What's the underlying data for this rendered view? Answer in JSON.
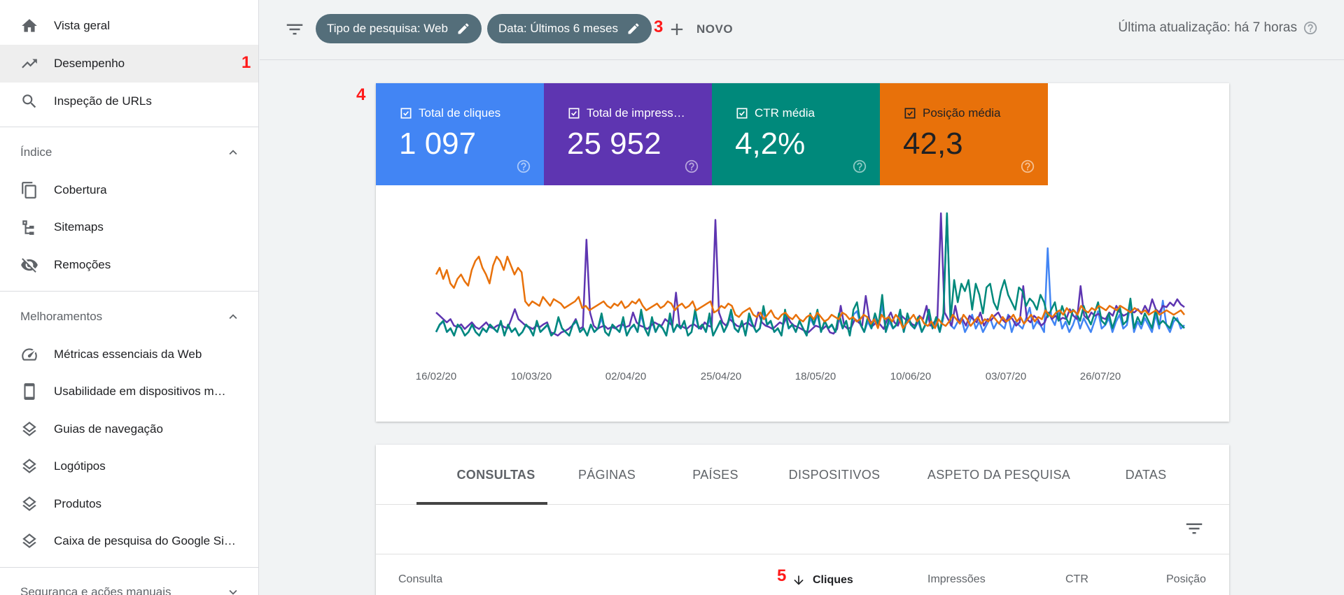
{
  "sidebar": {
    "items": [
      {
        "label": "Vista geral",
        "icon": "home-icon"
      },
      {
        "label": "Desempenho",
        "icon": "trending-up-icon",
        "active": true
      },
      {
        "label": "Inspeção de URLs",
        "icon": "search-icon"
      }
    ],
    "sections": [
      {
        "title": "Índice",
        "expanded": true,
        "items": [
          {
            "label": "Cobertura",
            "icon": "copy-icon"
          },
          {
            "label": "Sitemaps",
            "icon": "sitemap-icon"
          },
          {
            "label": "Remoções",
            "icon": "visibility-off-icon"
          }
        ]
      },
      {
        "title": "Melhoramentos",
        "expanded": true,
        "items": [
          {
            "label": "Métricas essenciais da Web",
            "icon": "speed-gauge-icon"
          },
          {
            "label": "Usabilidade em dispositivos m…",
            "icon": "smartphone-icon"
          },
          {
            "label": "Guias de navegação",
            "icon": "layers-icon"
          },
          {
            "label": "Logótipos",
            "icon": "layers-icon"
          },
          {
            "label": "Produtos",
            "icon": "layers-icon"
          },
          {
            "label": "Caixa de pesquisa do Google Si…",
            "icon": "layers-icon"
          }
        ]
      },
      {
        "title": "Segurança e ações manuais",
        "expanded": false,
        "items": []
      }
    ]
  },
  "annotations": {
    "n1": "1",
    "n2": "2",
    "n3": "3",
    "n4": "4",
    "n5": "5"
  },
  "topbar": {
    "chips": [
      "Tipo de pesquisa: Web",
      "Data: Últimos 6 meses"
    ],
    "new_label": "NOVO",
    "last_update": "Última atualização: há 7 horas"
  },
  "metrics": [
    {
      "label": "Total de cliques",
      "value": "1 097",
      "color": "#4285f4"
    },
    {
      "label": "Total de impress…",
      "value": "25 952",
      "color": "#5e35b1"
    },
    {
      "label": "CTR média",
      "value": "4,2%",
      "color": "#00897b"
    },
    {
      "label": "Posição média",
      "value": "42,3",
      "color": "#e8710a"
    }
  ],
  "chart_data": {
    "type": "line",
    "x_ticks": [
      "16/02/20",
      "10/03/20",
      "02/04/20",
      "25/04/20",
      "18/05/20",
      "10/06/20",
      "03/07/20",
      "26/07/20"
    ],
    "grid": false,
    "series": [
      {
        "name": "Total de cliques",
        "color": "#4285f4",
        "values": [
          4,
          6,
          7,
          4,
          5,
          3,
          6,
          5,
          3,
          4,
          6,
          4,
          3,
          5,
          4,
          6,
          5,
          4,
          7,
          3,
          6,
          4,
          5,
          3,
          4,
          6,
          5,
          3,
          7,
          4,
          5,
          6,
          3,
          4,
          8,
          5,
          4,
          3,
          6,
          7,
          4,
          5,
          3,
          6,
          4,
          5,
          8,
          4,
          3,
          6,
          5,
          4,
          7,
          3,
          5,
          6,
          4,
          9,
          5,
          3,
          7,
          4,
          6,
          5,
          3,
          8,
          4,
          6,
          5,
          7,
          3,
          4,
          9,
          5,
          6,
          4,
          8,
          3,
          5,
          7,
          4,
          6,
          9,
          5,
          4,
          7,
          3,
          8,
          6,
          4,
          5,
          10,
          6,
          7,
          4,
          5,
          3,
          9,
          5,
          6,
          4,
          7,
          5,
          3,
          8,
          6,
          9,
          4,
          7,
          5,
          6,
          4,
          8,
          5,
          7,
          3,
          9,
          10,
          6,
          4,
          7,
          5,
          8,
          6,
          12,
          4,
          7,
          5,
          6,
          9,
          4,
          8,
          6,
          5,
          7,
          4,
          6,
          9,
          5,
          7,
          4,
          8,
          38,
          6,
          5,
          7,
          8,
          4,
          6,
          9,
          5,
          7,
          4,
          6,
          8,
          5,
          7,
          6,
          5,
          9,
          4,
          7,
          6,
          5,
          8,
          11,
          5,
          7,
          6,
          4,
          28,
          8,
          6,
          10,
          5,
          7,
          4,
          6,
          9,
          5,
          8,
          6,
          4,
          7,
          10,
          5,
          6,
          8,
          4,
          7,
          9,
          5,
          6,
          12,
          4,
          7,
          5,
          8,
          6,
          4,
          9,
          5,
          13,
          6,
          4,
          7,
          8,
          5,
          6
        ]
      },
      {
        "name": "Total de impressões",
        "color": "#5e35b1",
        "values": [
          150,
          145,
          140,
          135,
          140,
          130,
          128,
          132,
          125,
          130,
          135,
          128,
          125,
          130,
          135,
          128,
          126,
          130,
          132,
          128,
          126,
          140,
          155,
          140,
          135,
          130,
          128,
          125,
          130,
          128,
          132,
          135,
          120,
          118,
          115,
          120,
          122,
          125,
          130,
          140,
          125,
          128,
          260,
          150,
          130,
          125,
          128,
          130,
          125,
          128,
          126,
          130,
          132,
          128,
          130,
          150,
          135,
          130,
          128,
          125,
          130,
          135,
          132,
          130,
          140,
          135,
          130,
          180,
          130,
          128,
          125,
          130,
          132,
          128,
          125,
          135,
          130,
          128,
          290,
          150,
          135,
          130,
          140,
          135,
          130,
          128,
          132,
          135,
          130,
          128,
          150,
          135,
          130,
          128,
          125,
          130,
          135,
          132,
          145,
          135,
          130,
          128,
          125,
          122,
          120,
          125,
          130,
          128,
          125,
          130,
          120,
          118,
          125,
          160,
          130,
          125,
          128,
          140,
          135,
          130,
          175,
          140,
          130,
          135,
          132,
          125,
          140,
          150,
          135,
          130,
          145,
          140,
          138,
          132,
          130,
          145,
          140,
          160,
          130,
          135,
          140,
          300,
          150,
          140,
          130,
          160,
          135,
          140,
          130,
          145,
          140,
          135,
          150,
          130,
          140,
          138,
          145,
          150,
          140,
          135,
          145,
          140,
          130,
          135,
          190,
          140,
          135,
          145,
          140,
          130,
          135,
          150,
          140,
          145,
          138,
          142,
          140,
          155,
          145,
          140,
          190,
          145,
          140,
          150,
          145,
          148,
          142,
          140,
          150,
          145,
          160,
          150,
          145,
          148,
          152,
          150,
          155,
          148,
          160,
          150,
          170,
          155,
          150,
          160,
          158,
          165,
          160,
          170,
          162,
          158
        ]
      },
      {
        "name": "CTR média",
        "color": "#00897b",
        "values": [
          4,
          6,
          7,
          4,
          5,
          3,
          6,
          5,
          3,
          4,
          6,
          4,
          3,
          5,
          4,
          6,
          5,
          4,
          7,
          3,
          6,
          4,
          5,
          3,
          4,
          6,
          5,
          3,
          7,
          4,
          5,
          6,
          3,
          4,
          8,
          5,
          4,
          3,
          6,
          7,
          4,
          5,
          3,
          6,
          4,
          5,
          9,
          4,
          3,
          6,
          5,
          4,
          8,
          3,
          5,
          6,
          4,
          10,
          5,
          3,
          8,
          4,
          6,
          5,
          3,
          9,
          4,
          6,
          5,
          7,
          3,
          4,
          10,
          5,
          6,
          4,
          9,
          3,
          5,
          7,
          4,
          6,
          10,
          5,
          4,
          7,
          3,
          9,
          6,
          4,
          5,
          11,
          6,
          7,
          4,
          5,
          3,
          10,
          5,
          6,
          4,
          7,
          5,
          3,
          9,
          6,
          10,
          4,
          7,
          5,
          6,
          4,
          9,
          5,
          7,
          3,
          10,
          12,
          6,
          4,
          8,
          5,
          9,
          6,
          14,
          4,
          8,
          5,
          6,
          10,
          4,
          9,
          6,
          5,
          8,
          4,
          6,
          10,
          5,
          8,
          4,
          9,
          36,
          7,
          18,
          12,
          17,
          15,
          18,
          10,
          17,
          14,
          9,
          16,
          17,
          12,
          10,
          15,
          18,
          14,
          12,
          10,
          16,
          15,
          11,
          13,
          12,
          10,
          14,
          12,
          8,
          10,
          12,
          7,
          11,
          8,
          6,
          10,
          9,
          7,
          11,
          8,
          6,
          9,
          12,
          7,
          6,
          9,
          5,
          8,
          11,
          6,
          7,
          13,
          5,
          8,
          6,
          9,
          7,
          5,
          10,
          6,
          7,
          6,
          5,
          8,
          7,
          6,
          5
        ]
      },
      {
        "name": "Posição média",
        "color": "#e8710a",
        "values": [
          42,
          45,
          40,
          44,
          38,
          36,
          40,
          42,
          39,
          37,
          44,
          48,
          50,
          45,
          42,
          38,
          46,
          50,
          48,
          44,
          50,
          46,
          42,
          45,
          43,
          30,
          28,
          30,
          29,
          28,
          32,
          30,
          28,
          31,
          30,
          29,
          27,
          28,
          29,
          30,
          32,
          27,
          28,
          26,
          27,
          28,
          29,
          30,
          28,
          27,
          29,
          28,
          30,
          27,
          28,
          30,
          29,
          31,
          28,
          26,
          27,
          28,
          29,
          27,
          28,
          30,
          29,
          26,
          28,
          29,
          27,
          28,
          30,
          26,
          27,
          28,
          29,
          30,
          25,
          26,
          28,
          27,
          29,
          28,
          24,
          23,
          25,
          26,
          27,
          24,
          23,
          25,
          22,
          24,
          26,
          23,
          22,
          24,
          25,
          23,
          22,
          24,
          22,
          21,
          23,
          24,
          22,
          25,
          23,
          21,
          22,
          24,
          23,
          22,
          25,
          24,
          22,
          23,
          21,
          22,
          24,
          23,
          20,
          22,
          18,
          24,
          22,
          23,
          21,
          24,
          22,
          18,
          20,
          22,
          24,
          21,
          23,
          20,
          19,
          21,
          18,
          22,
          20,
          19,
          21,
          24,
          22,
          20,
          24,
          22,
          19,
          21,
          23,
          20,
          22,
          21,
          24,
          22,
          20,
          23,
          21,
          22,
          24,
          21,
          23,
          20,
          22,
          24,
          21,
          23,
          22,
          26,
          24,
          23,
          25,
          26,
          24,
          27,
          25,
          26,
          24,
          28,
          26,
          25,
          27,
          26,
          28,
          27,
          26,
          28,
          27,
          26,
          28,
          27,
          26,
          25,
          27,
          26,
          25,
          26,
          24,
          25,
          26,
          24,
          25,
          26,
          25,
          24,
          25,
          26,
          24
        ]
      }
    ]
  },
  "table": {
    "tabs": [
      "CONSULTAS",
      "PÁGINAS",
      "PAÍSES",
      "DISPOSITIVOS",
      "ASPETO DA PESQUISA",
      "DATAS"
    ],
    "active_tab": 0,
    "columns": [
      "Consulta",
      "Cliques",
      "Impressões",
      "CTR",
      "Posição"
    ],
    "sorted_column": "Cliques"
  }
}
